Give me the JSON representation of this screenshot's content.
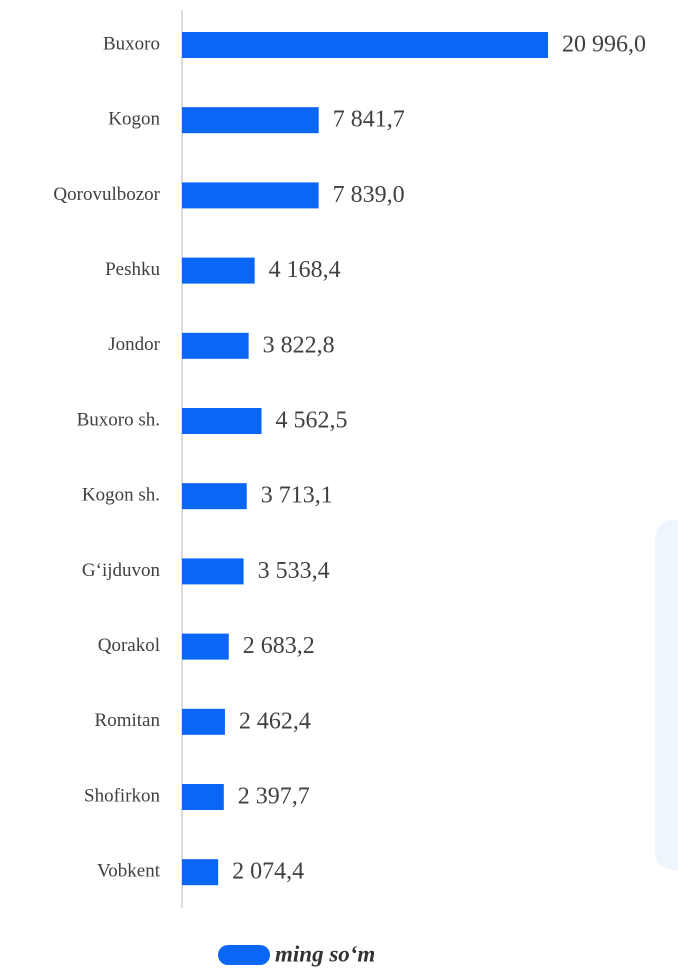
{
  "chart_data": {
    "type": "bar",
    "orientation": "horizontal",
    "categories": [
      "Buxoro",
      "Kogon",
      "Qorovulbozor",
      "Peshku",
      "Jondor",
      "Buxoro sh.",
      "Kogon sh.",
      "G‘ijduvon",
      "Qorakol",
      "Romitan",
      "Shofirkon",
      "Vobkent"
    ],
    "series": [
      {
        "name": "ming so‘m",
        "color": "#0a66f5",
        "values": [
          20996.0,
          7841.7,
          7839.0,
          4168.4,
          3822.8,
          4562.5,
          3713.1,
          3533.4,
          2683.2,
          2462.4,
          2397.7,
          2074.4
        ],
        "value_labels": [
          "20 996,0",
          "7 841,7",
          "7 839,0",
          "4 168,4",
          "3 822,8",
          "4 562,5",
          "3 713,1",
          "3 533,4",
          "2 683,2",
          "2 462,4",
          "2 397,7",
          "2 074,4"
        ]
      }
    ],
    "legend": "bottom"
  }
}
